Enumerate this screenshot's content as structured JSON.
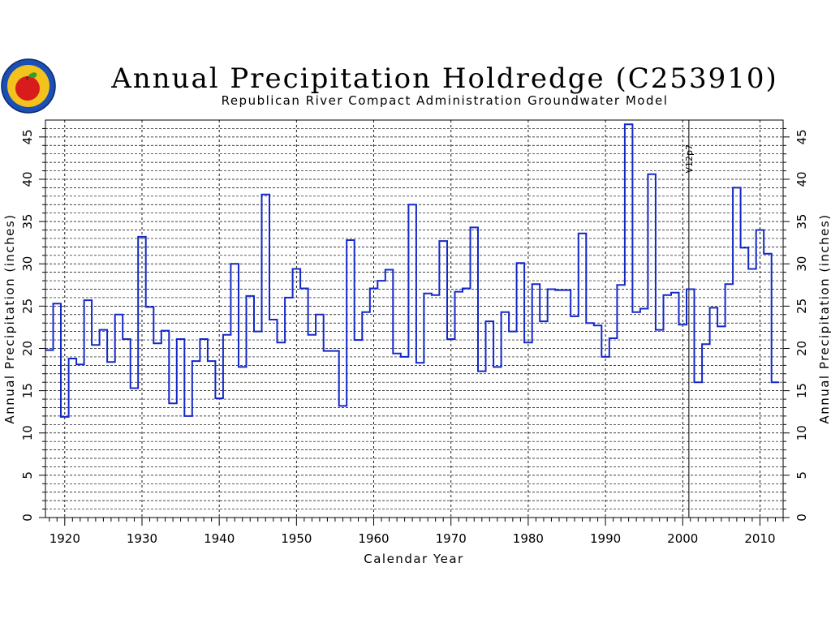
{
  "chart_data": {
    "type": "line",
    "style": "step",
    "title": "Annual Precipitation Holdredge (C253910)",
    "subtitle": "Republican River Compact Administration Groundwater Model",
    "xlabel": "Calendar Year",
    "ylabel": "Annual Precipitation (inches)",
    "xlim": [
      1917.5,
      2013
    ],
    "ylim": [
      0,
      47
    ],
    "x_ticks": [
      1920,
      1930,
      1940,
      1950,
      1960,
      1970,
      1980,
      1990,
      2000,
      2010
    ],
    "y_ticks": [
      0,
      5,
      10,
      15,
      20,
      25,
      30,
      35,
      40,
      45
    ],
    "grid": true,
    "annotations": [
      {
        "x": 2000.8,
        "text": "V12p7"
      }
    ],
    "series": [
      {
        "color": "#1428c8",
        "x": [
          1918,
          1919,
          1920,
          1921,
          1922,
          1923,
          1924,
          1925,
          1926,
          1927,
          1928,
          1929,
          1930,
          1931,
          1932,
          1933,
          1934,
          1935,
          1936,
          1937,
          1938,
          1939,
          1940,
          1941,
          1942,
          1943,
          1944,
          1945,
          1946,
          1947,
          1948,
          1949,
          1950,
          1951,
          1952,
          1953,
          1954,
          1955,
          1956,
          1957,
          1958,
          1959,
          1960,
          1961,
          1962,
          1963,
          1964,
          1965,
          1966,
          1967,
          1968,
          1969,
          1970,
          1971,
          1972,
          1973,
          1974,
          1975,
          1976,
          1977,
          1978,
          1979,
          1980,
          1981,
          1982,
          1983,
          1984,
          1985,
          1986,
          1987,
          1988,
          1989,
          1990,
          1991,
          1992,
          1993,
          1994,
          1995,
          1996,
          1997,
          1998,
          1999,
          2000,
          2001,
          2002,
          2003,
          2004,
          2005,
          2006,
          2007,
          2008,
          2009,
          2010,
          2011,
          2012
        ],
        "y": [
          19.8,
          25.3,
          11.9,
          18.8,
          18.1,
          25.7,
          20.4,
          22.2,
          18.4,
          24.0,
          21.1,
          15.3,
          33.2,
          24.9,
          20.6,
          22.1,
          13.5,
          21.1,
          12.0,
          18.5,
          21.1,
          18.5,
          14.1,
          21.6,
          30.0,
          17.8,
          26.2,
          22.0,
          38.2,
          23.4,
          20.7,
          26.0,
          29.4,
          27.1,
          21.6,
          24.0,
          19.7,
          19.7,
          13.2,
          32.8,
          21.0,
          24.3,
          27.1,
          28.0,
          29.3,
          19.4,
          19.0,
          37.0,
          18.3,
          26.5,
          26.3,
          32.7,
          21.1,
          26.7,
          27.1,
          34.3,
          17.3,
          23.2,
          17.8,
          24.3,
          22.0,
          30.1,
          20.7,
          27.6,
          23.2,
          27.0,
          26.9,
          26.9,
          23.8,
          33.6,
          23.0,
          22.7,
          19.0,
          21.2,
          27.5,
          46.5,
          24.3,
          24.7,
          40.6,
          22.2,
          26.3,
          26.6,
          22.8,
          27.0,
          16.0,
          20.5,
          24.8,
          22.6,
          27.6,
          39.0,
          31.9,
          29.4,
          34.0,
          31.2,
          16.0
        ]
      }
    ]
  }
}
